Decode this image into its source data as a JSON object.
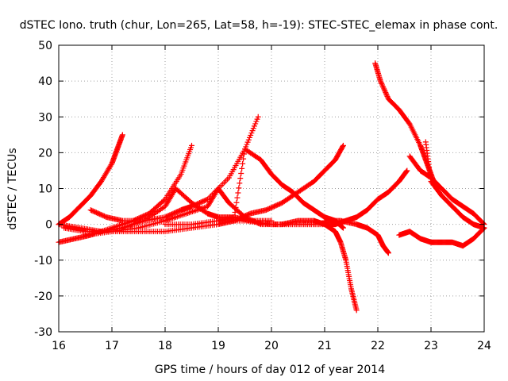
{
  "chart_data": {
    "type": "scatter",
    "title": "dSTEC Iono. truth (chur, Lon=265, Lat=58, h=-19): STEC-STEC_elemax in phase cont.",
    "xlabel": "GPS time / hours of day 012 of year 2014",
    "ylabel": "dSTEC  / TECUs",
    "xlim": [
      16,
      24
    ],
    "ylim": [
      -30,
      50
    ],
    "x_ticks": [
      16,
      17,
      18,
      19,
      20,
      21,
      22,
      23,
      24
    ],
    "y_ticks": [
      -30,
      -20,
      -10,
      0,
      10,
      20,
      30,
      40,
      50
    ],
    "grid": true,
    "legend": "none",
    "marker": "plus",
    "color": "#ff0000",
    "series": [
      {
        "x": [
          16.0,
          16.2,
          16.4,
          16.6,
          16.8,
          17.0,
          17.1,
          17.2
        ],
        "y": [
          0,
          2,
          5,
          8,
          12,
          17,
          21,
          25
        ]
      },
      {
        "x": [
          16.0,
          16.3,
          16.6,
          17.0,
          17.4,
          17.7,
          18.0,
          18.3,
          18.5
        ],
        "y": [
          -5,
          -4,
          -3,
          -1,
          1,
          3,
          7,
          14,
          22
        ]
      },
      {
        "x": [
          16.6,
          16.9,
          17.2,
          17.6,
          18.0,
          18.3,
          18.5,
          18.8,
          19.2,
          19.5,
          19.75
        ],
        "y": [
          4,
          2,
          1,
          1,
          2,
          4,
          5,
          7,
          13,
          21,
          30
        ]
      },
      {
        "x": [
          16.0,
          16.4,
          16.8,
          17.2,
          17.6,
          18.0,
          18.2,
          18.5,
          18.8,
          19.0,
          19.3,
          19.6,
          20.0
        ],
        "y": [
          0,
          -1,
          -2,
          -1,
          1,
          5,
          10,
          6,
          3,
          2,
          2,
          1,
          1
        ]
      },
      {
        "x": [
          16.5,
          17.0,
          17.5,
          18.0,
          18.4,
          18.8,
          19.0,
          19.2,
          19.5,
          19.8,
          20.2,
          20.5,
          20.8,
          21.0
        ],
        "y": [
          -3,
          -2,
          -1,
          1,
          3,
          5,
          10,
          6,
          2,
          0,
          0,
          1,
          1,
          0
        ]
      },
      {
        "x": [
          16.1,
          16.5,
          17.0,
          17.5,
          18.0,
          18.5,
          19.0,
          19.3,
          19.6,
          19.9,
          20.2,
          20.5,
          20.8,
          21.0,
          21.2,
          21.35
        ],
        "y": [
          -1,
          -2,
          -2,
          -2,
          -2,
          -1,
          0,
          1,
          3,
          4,
          6,
          9,
          12,
          15,
          18,
          22
        ]
      },
      {
        "x": [
          19.0,
          19.3,
          19.5,
          19.8,
          20.0,
          20.2,
          20.4,
          20.6,
          20.8,
          21.0,
          21.2,
          21.35
        ],
        "y": [
          1,
          2,
          21,
          18,
          14,
          11,
          9,
          6,
          4,
          2,
          1,
          -1
        ]
      },
      {
        "x": [
          18.0,
          18.5,
          19.0,
          19.5,
          20.0,
          20.5,
          21.0,
          21.2,
          21.3,
          21.4,
          21.5,
          21.6
        ],
        "y": [
          0,
          0,
          1,
          1,
          0,
          0,
          0,
          -2,
          -5,
          -10,
          -18,
          -24
        ]
      },
      {
        "x": [
          20.0,
          20.5,
          21.0,
          21.2,
          21.4,
          21.6,
          21.8,
          22.0,
          22.2,
          22.4,
          22.55
        ],
        "y": [
          0,
          0,
          0,
          0,
          1,
          2,
          4,
          7,
          9,
          12,
          15
        ]
      },
      {
        "x": [
          21.0,
          21.3,
          21.6,
          21.8,
          22.0,
          22.1,
          22.2
        ],
        "y": [
          1,
          1,
          0,
          -1,
          -3,
          -6,
          -8
        ]
      },
      {
        "x": [
          21.95,
          22.05,
          22.2,
          22.4,
          22.6,
          22.8,
          22.9,
          23.0,
          23.1
        ],
        "y": [
          45,
          40,
          35,
          32,
          28,
          22,
          18,
          14,
          10
        ]
      },
      {
        "x": [
          22.6,
          22.8,
          23.0,
          23.2,
          23.4,
          23.6,
          23.8,
          24.0
        ],
        "y": [
          19,
          15,
          13,
          10,
          7,
          5,
          3,
          0
        ]
      },
      {
        "x": [
          22.4,
          22.6,
          22.8,
          23.0,
          23.2,
          23.4,
          23.6,
          23.8,
          24.0
        ],
        "y": [
          -3,
          -2,
          -4,
          -5,
          -5,
          -5,
          -6,
          -4,
          -1
        ]
      },
      {
        "x": [
          22.9,
          23.0,
          23.2,
          23.4,
          23.6,
          23.8,
          24.0
        ],
        "y": [
          23,
          12,
          8,
          5,
          2,
          0,
          -1
        ]
      }
    ]
  }
}
